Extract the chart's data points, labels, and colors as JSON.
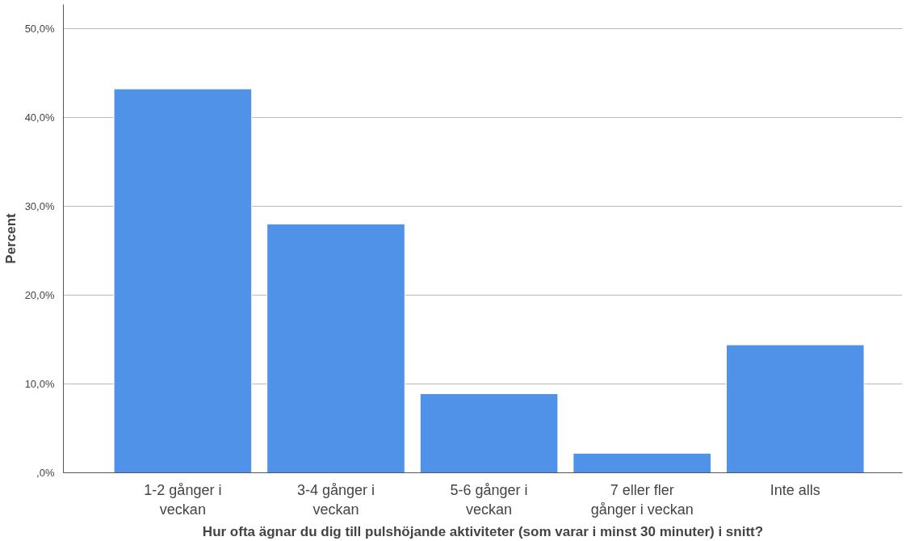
{
  "chart_data": {
    "type": "bar",
    "xlabel": "Hur ofta ägnar du dig till pulshöjande aktiviteter (som varar i minst 30 minuter) i snitt?",
    "ylabel": "Percent",
    "categories": [
      "1-2 gånger i\nveckan",
      "3-4 gånger i\nveckan",
      "5-6 gånger i\nveckan",
      "7 eller fler\ngånger i veckan",
      "Inte alls"
    ],
    "values": [
      43.2,
      28.0,
      8.9,
      2.2,
      14.4
    ],
    "color": "#4f92e8",
    "ylim": [
      0,
      52.7
    ],
    "yticks": [
      {
        "value": 0,
        "label": ",0%"
      },
      {
        "value": 10,
        "label": "10,0%"
      },
      {
        "value": 20,
        "label": "20,0%"
      },
      {
        "value": 30,
        "label": "30,0%"
      },
      {
        "value": 40,
        "label": "40,0%"
      },
      {
        "value": 50,
        "label": "50,0%"
      }
    ],
    "grid": "y"
  }
}
